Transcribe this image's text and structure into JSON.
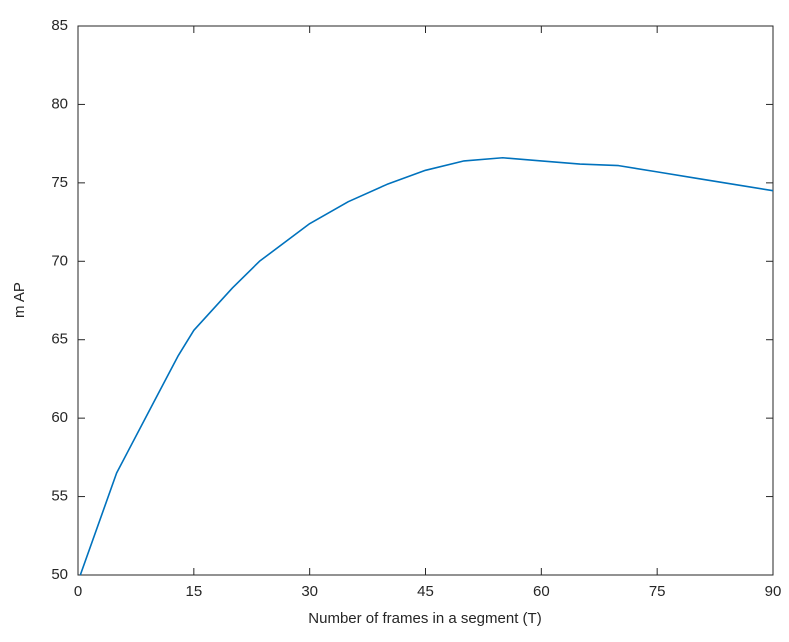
{
  "chart_data": {
    "type": "line",
    "x_label": "Number of frames in a segment (T)",
    "y_label": "m AP",
    "x": [
      0.3,
      5,
      10,
      13,
      15,
      20,
      23.5,
      30,
      35,
      40,
      45,
      50,
      55,
      60,
      65,
      70,
      75,
      80,
      85,
      90
    ],
    "series": [
      {
        "name": "mAP",
        "color": "#0072bd",
        "values": [
          50,
          56.5,
          61.2,
          64,
          65.6,
          68.3,
          70,
          72.4,
          73.8,
          74.9,
          75.8,
          76.4,
          76.6,
          76.4,
          76.2,
          76.1,
          75.7,
          75.3,
          74.9,
          74.5
        ]
      }
    ],
    "xlim": [
      0,
      90
    ],
    "xticks": [
      0,
      15,
      30,
      45,
      60,
      75,
      90
    ],
    "ylim": [
      50,
      85
    ],
    "yticks": [
      50,
      55,
      60,
      65,
      70,
      75,
      80,
      85
    ],
    "grid": false
  }
}
